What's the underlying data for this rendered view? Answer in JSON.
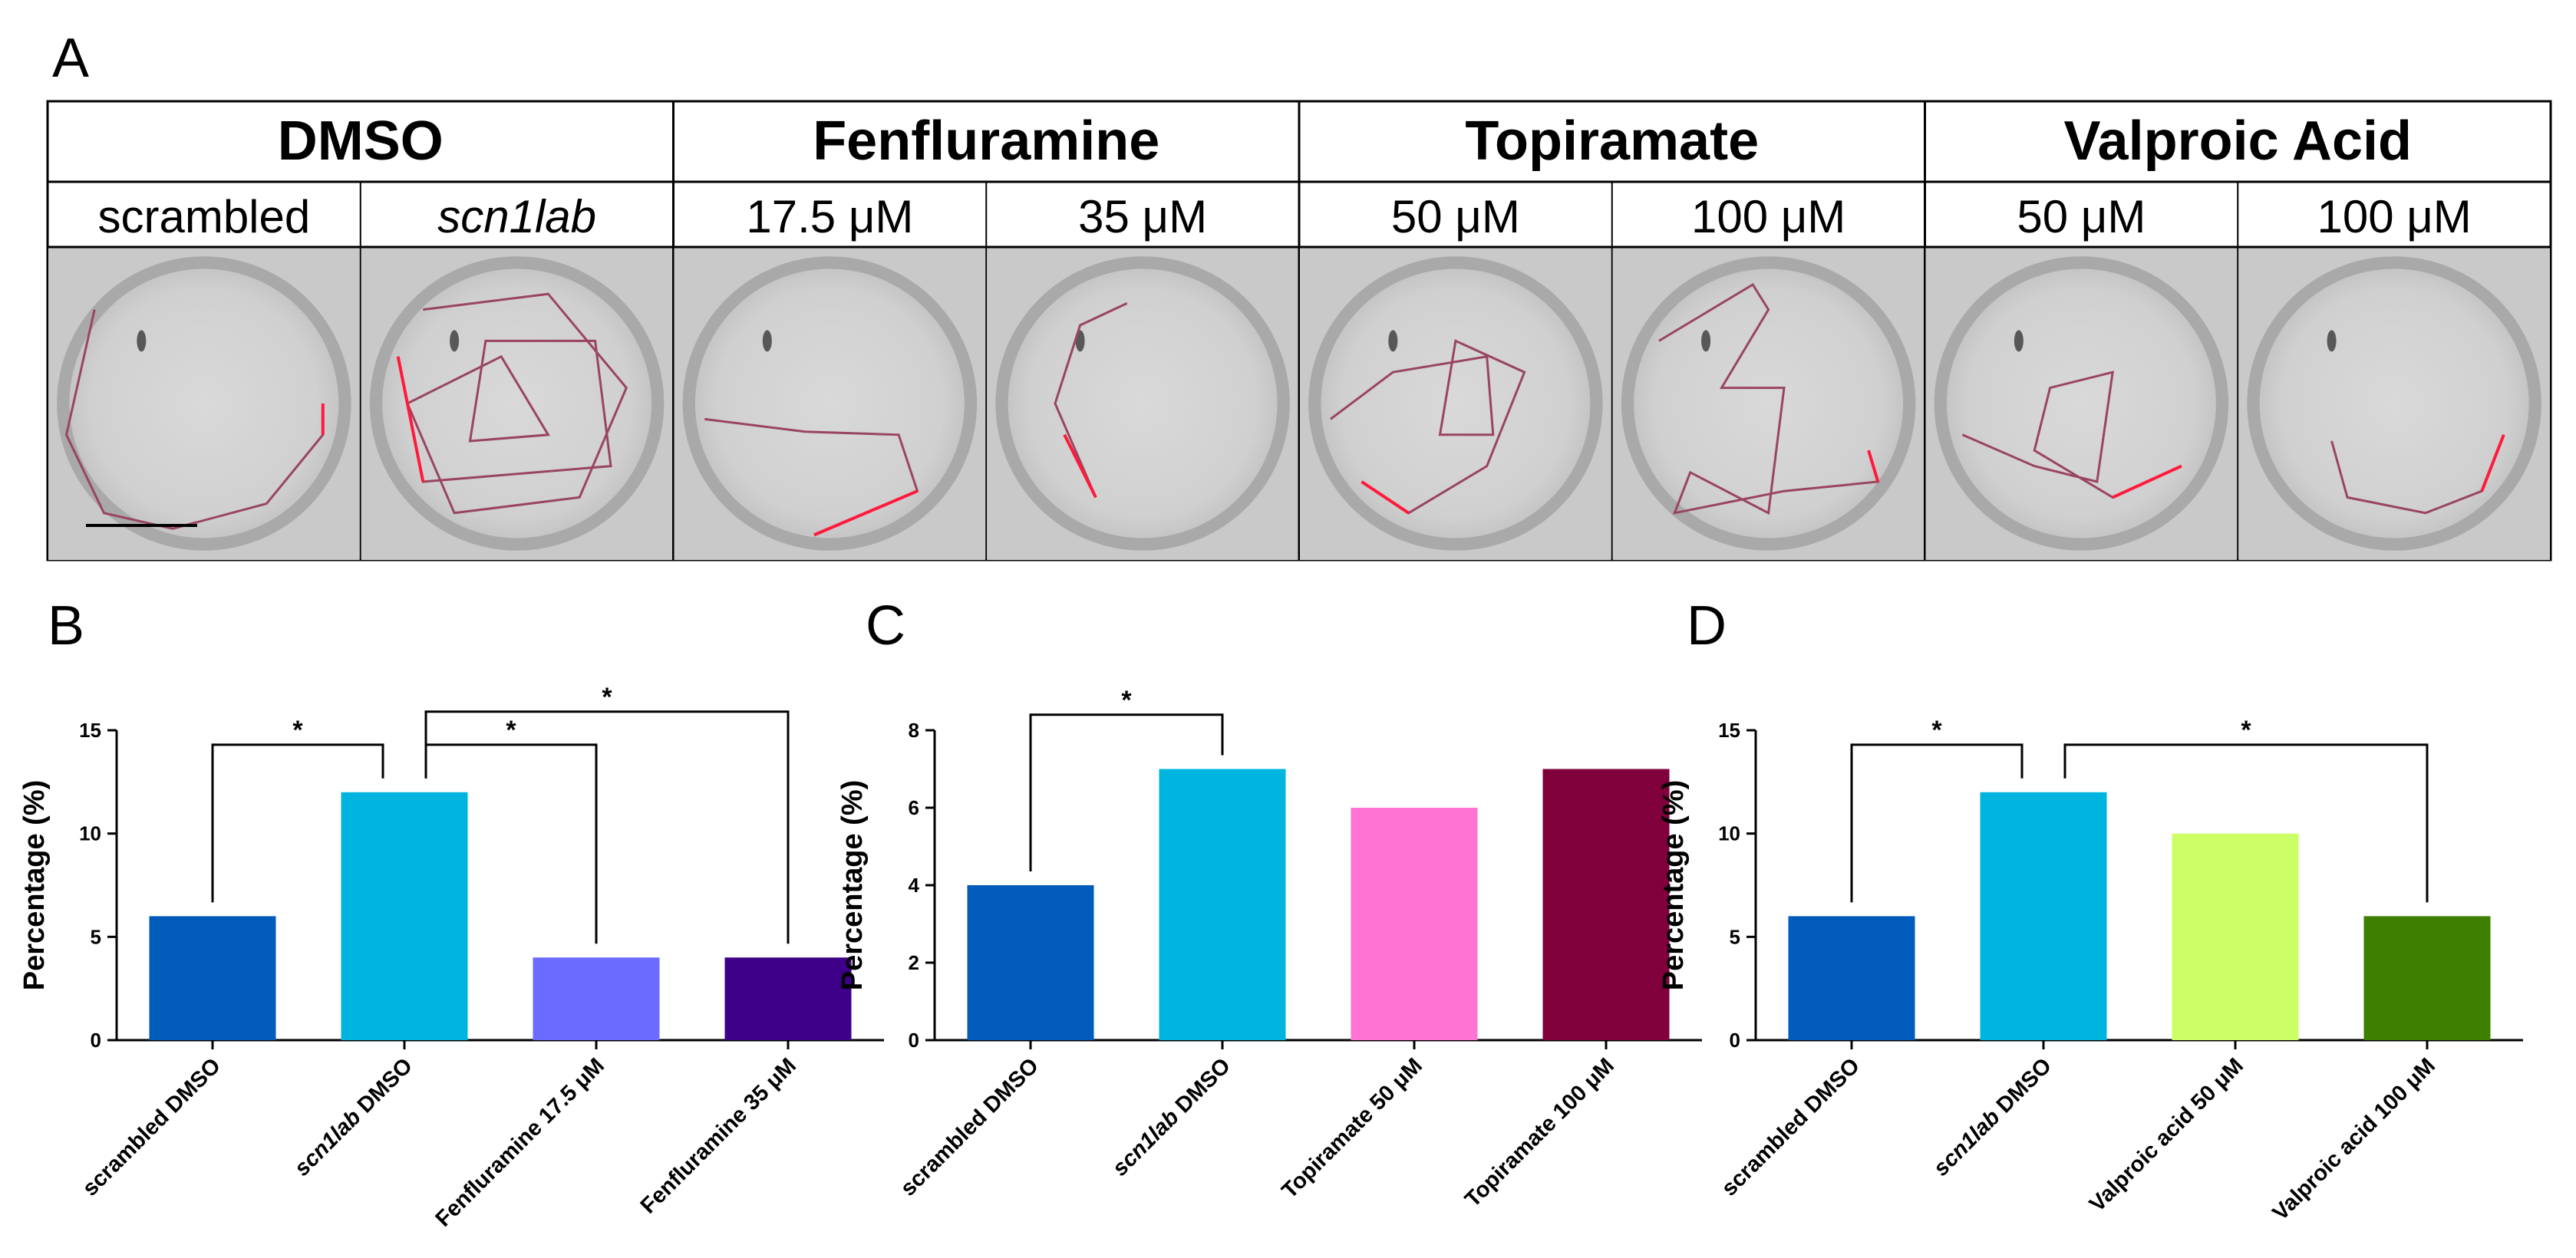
{
  "panel_a": {
    "letter": "A",
    "groups": [
      {
        "name": "DMSO",
        "subs": [
          {
            "label": "scrambled",
            "italic": false
          },
          {
            "label": "scn1lab",
            "italic": true
          }
        ]
      },
      {
        "name": "Fenfluramine",
        "subs": [
          {
            "label": "17.5 μM",
            "italic": false
          },
          {
            "label": "35 μM",
            "italic": false
          }
        ]
      },
      {
        "name": "Topiramate",
        "subs": [
          {
            "label": "50 μM",
            "italic": false
          },
          {
            "label": "100 μM",
            "italic": false
          }
        ]
      },
      {
        "name": "Valproic Acid",
        "subs": [
          {
            "label": "50 μM",
            "italic": false
          },
          {
            "label": "100 μM",
            "italic": false
          }
        ]
      }
    ],
    "colors": {
      "well_bg": "#c9c9c9",
      "well_inner": "#d6d6d6",
      "track": "#9a4560",
      "track_fast": "#ff1a3c"
    }
  },
  "chart_data": [
    {
      "letter": "B",
      "type": "bar",
      "ylabel": "Percentage (%)",
      "ylim": [
        0,
        15
      ],
      "yticks": [
        0,
        5,
        10,
        15
      ],
      "categories": [
        {
          "pre": "scrambled DMSO",
          "italic": ""
        },
        {
          "pre": "",
          "italic": "scn1lab",
          "post": " DMSO"
        },
        {
          "pre": "Fenfluramine 17.5 μM",
          "italic": ""
        },
        {
          "pre": "Fenfluramine 35 μM",
          "italic": ""
        }
      ],
      "values": [
        6,
        12,
        4,
        4
      ],
      "colors": [
        "#005bbb",
        "#00b4e0",
        "#6b6bff",
        "#3e0088"
      ],
      "brackets": [
        {
          "from": 0,
          "to": 1,
          "label": "*",
          "level": 14.3
        },
        {
          "from": 1,
          "to": 2,
          "label": "*",
          "level": 14.3
        },
        {
          "from": 1,
          "to": 3,
          "label": "*",
          "level": 15.9
        }
      ]
    },
    {
      "letter": "C",
      "type": "bar",
      "ylabel": "Percentage (%)",
      "ylim": [
        0,
        8
      ],
      "yticks": [
        0,
        2,
        4,
        6,
        8
      ],
      "categories": [
        {
          "pre": "scrambled DMSO",
          "italic": ""
        },
        {
          "pre": "",
          "italic": "scn1lab",
          "post": " DMSO"
        },
        {
          "pre": "Topiramate 50 μM",
          "italic": ""
        },
        {
          "pre": "Topiramate 100 μM",
          "italic": ""
        }
      ],
      "values": [
        4,
        7,
        6,
        7
      ],
      "colors": [
        "#005bbb",
        "#00b4e0",
        "#ff73d2",
        "#80003c"
      ],
      "brackets": [
        {
          "from": 0,
          "to": 1,
          "label": "*",
          "level": 8.4
        }
      ]
    },
    {
      "letter": "D",
      "type": "bar",
      "ylabel": "Percentage (%)",
      "ylim": [
        0,
        15
      ],
      "yticks": [
        0,
        5,
        10,
        15
      ],
      "categories": [
        {
          "pre": "scrambled DMSO",
          "italic": ""
        },
        {
          "pre": "",
          "italic": "scn1lab",
          "post": " DMSO"
        },
        {
          "pre": "Valproic acid 50 μM",
          "italic": ""
        },
        {
          "pre": "Valproic acid 100 μM",
          "italic": ""
        }
      ],
      "values": [
        6,
        12,
        10,
        6
      ],
      "colors": [
        "#005bbb",
        "#00b4e0",
        "#ccff66",
        "#3f7f00"
      ],
      "brackets": [
        {
          "from": 0,
          "to": 1,
          "label": "*",
          "level": 14.3
        },
        {
          "from": 1,
          "to": 3,
          "label": "*",
          "level": 14.3
        }
      ]
    }
  ]
}
